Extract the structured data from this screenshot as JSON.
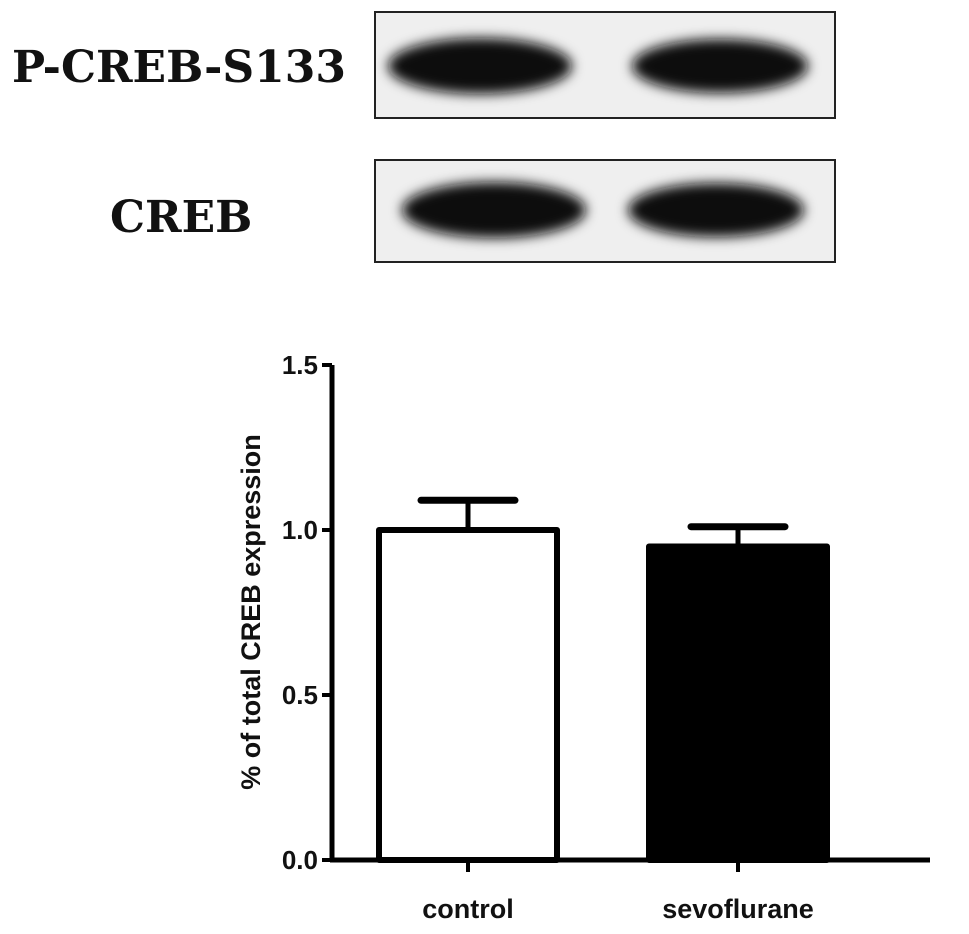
{
  "blot": {
    "rows": [
      {
        "label": "P-CREB-S133",
        "lanes": 2
      },
      {
        "label": "CREB",
        "lanes": 2
      }
    ]
  },
  "chart_data": {
    "type": "bar",
    "categories": [
      "control",
      "sevoflurane"
    ],
    "values": [
      1.0,
      0.95
    ],
    "error_upper": [
      1.09,
      1.01
    ],
    "bar_fill": [
      "#ffffff",
      "#000000"
    ],
    "ylabel": "% of total CREB expression",
    "xlabel": "",
    "ylim": [
      0,
      1.5
    ],
    "yticks": [
      "0.0",
      "0.5",
      "1.0",
      "1.5"
    ],
    "grid": false
  }
}
